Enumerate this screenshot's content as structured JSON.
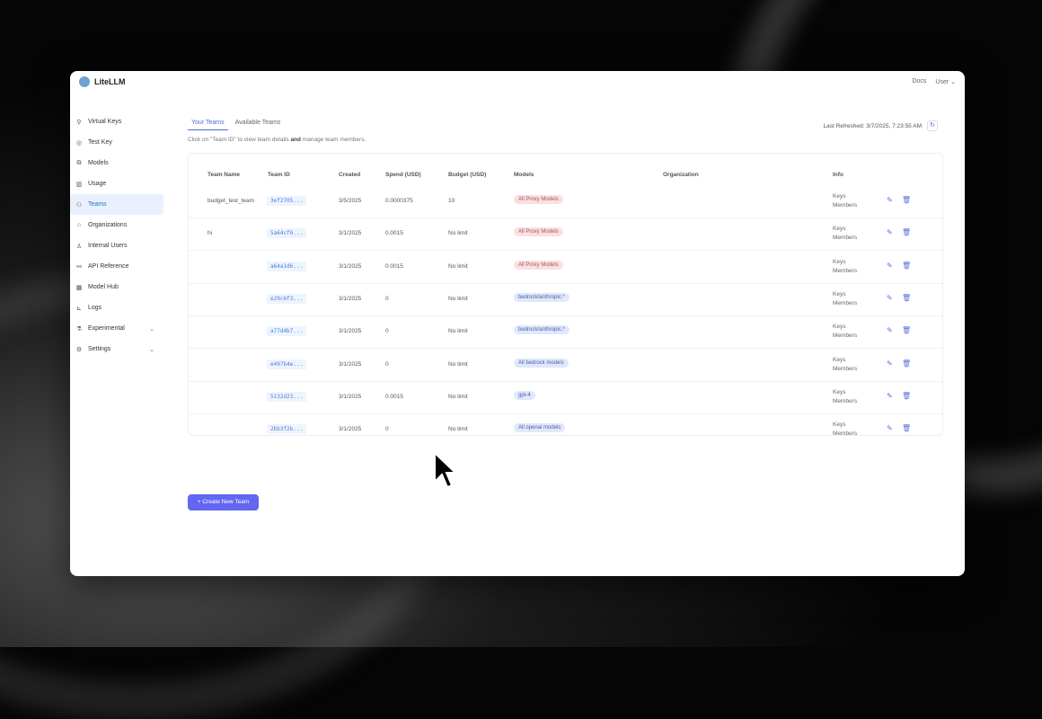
{
  "app": {
    "name": "LiteLLM",
    "docs": "Docs",
    "user": "User"
  },
  "sidebar": {
    "items": [
      {
        "label": "Virtual Keys",
        "icon": "key-icon",
        "glyph": "⚲"
      },
      {
        "label": "Test Key",
        "icon": "play-circle-icon",
        "glyph": "◎"
      },
      {
        "label": "Models",
        "icon": "models-icon",
        "glyph": "⧉"
      },
      {
        "label": "Usage",
        "icon": "bar-chart-icon",
        "glyph": "▥"
      },
      {
        "label": "Teams",
        "icon": "team-icon",
        "glyph": "⚇",
        "active": true
      },
      {
        "label": "Organizations",
        "icon": "bank-icon",
        "glyph": "⌂"
      },
      {
        "label": "Internal Users",
        "icon": "user-icon",
        "glyph": "♙"
      },
      {
        "label": "API Reference",
        "icon": "link-icon",
        "glyph": "⚯"
      },
      {
        "label": "Model Hub",
        "icon": "grid-icon",
        "glyph": "▦"
      },
      {
        "label": "Logs",
        "icon": "line-chart-icon",
        "glyph": "⊾"
      },
      {
        "label": "Experimental",
        "icon": "flask-icon",
        "glyph": "⚗",
        "chevron": true
      },
      {
        "label": "Settings",
        "icon": "gear-icon",
        "glyph": "⚙",
        "chevron": true
      }
    ]
  },
  "tabs": [
    "Your Teams",
    "Available Teams"
  ],
  "hint": {
    "pre": "Click on \"Team ID\" to view team details ",
    "bold": "and",
    "post": " manage team members."
  },
  "refresh": {
    "label": "Last Refreshed: 3/7/2025, 7:23:55 AM"
  },
  "table": {
    "headers": [
      "Team Name",
      "Team ID",
      "Created",
      "Spend (USD)",
      "Budget (USD)",
      "Models",
      "Organization",
      "Info"
    ],
    "rows": [
      {
        "name": "budget_test_team",
        "id": "3ef2705...",
        "created": "3/5/2025",
        "spend": "0.0000375",
        "budget": "10",
        "model": "All Proxy Models",
        "color": "red",
        "info1": "Keys",
        "info2": "Members"
      },
      {
        "name": "hi",
        "id": "5a64cf0...",
        "created": "3/1/2025",
        "spend": "0.0015",
        "budget": "No limit",
        "model": "All Proxy Models",
        "color": "red",
        "info1": "Keys",
        "info2": "Members"
      },
      {
        "name": "",
        "id": "a64a1d6...",
        "created": "3/1/2025",
        "spend": "0.0015",
        "budget": "No limit",
        "model": "All Proxy Models",
        "color": "red",
        "info1": "Keys",
        "info2": "Members"
      },
      {
        "name": "",
        "id": "e29c6f3...",
        "created": "3/1/2025",
        "spend": "0",
        "budget": "No limit",
        "model": "bedrock/anthropic.*",
        "color": "blue",
        "info1": "Keys",
        "info2": "Members"
      },
      {
        "name": "",
        "id": "a77d4b7...",
        "created": "3/1/2025",
        "spend": "0",
        "budget": "No limit",
        "model": "bedrock/anthropic.*",
        "color": "blue",
        "info1": "Keys",
        "info2": "Members"
      },
      {
        "name": "",
        "id": "e497b4e...",
        "created": "3/1/2025",
        "spend": "0",
        "budget": "No limit",
        "model": "All bedrock models",
        "color": "blue",
        "info1": "Keys",
        "info2": "Members"
      },
      {
        "name": "",
        "id": "5132d23...",
        "created": "3/1/2025",
        "spend": "0.0015",
        "budget": "No limit",
        "model": "gpt-4",
        "color": "blue",
        "info1": "Keys",
        "info2": "Members"
      },
      {
        "name": "",
        "id": "2bb3f2b...",
        "created": "3/1/2025",
        "spend": "0",
        "budget": "No limit",
        "model": "All openai models",
        "color": "blue",
        "info1": "Keys",
        "info2": "Members"
      }
    ]
  },
  "create_button": "+ Create New Team"
}
